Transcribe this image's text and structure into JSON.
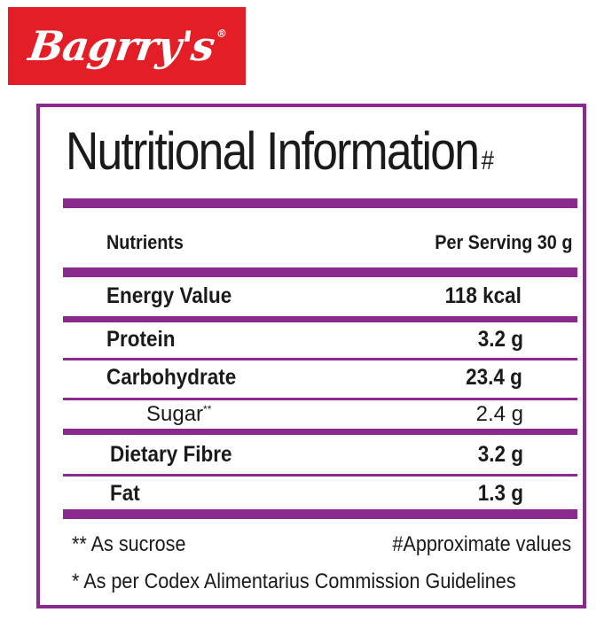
{
  "brand": {
    "name": "Bagrry's",
    "registered_mark": "®",
    "background_color": "#e41e26"
  },
  "panel": {
    "title": "Nutritional Information",
    "title_mark": "#",
    "accent_color": "#8a2a8e"
  },
  "table": {
    "header": {
      "nutrients": "Nutrients",
      "per_serving": "Per Serving 30 g"
    },
    "rows": [
      {
        "name": "Energy Value",
        "value": "118 kcal"
      },
      {
        "name": "Protein",
        "value": "3.2 g"
      },
      {
        "name": "Carbohydrate",
        "value": "23.4 g"
      },
      {
        "name": "Sugar",
        "mark": "**",
        "value": "2.4 g"
      },
      {
        "name": "Dietary Fibre",
        "value": "3.2 g"
      },
      {
        "name": "Fat",
        "value": "1.3 g"
      }
    ]
  },
  "footnotes": {
    "sucrose": "** As sucrose",
    "approximate": "#Approximate values",
    "codex": "* As per Codex Alimentarius Commission Guidelines"
  }
}
